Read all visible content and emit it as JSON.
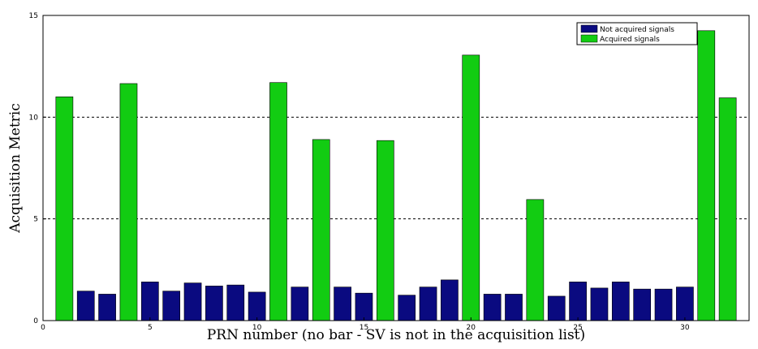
{
  "chart_data": {
    "type": "bar",
    "xlabel": "PRN number (no bar - SV is not in the acquisition list)",
    "ylabel": "Acquisition Metric",
    "xlim": [
      0,
      33
    ],
    "ylim": [
      0,
      15
    ],
    "x_ticks": [
      0,
      5,
      10,
      15,
      20,
      25,
      30
    ],
    "y_ticks": [
      0,
      5,
      10,
      15
    ],
    "grid": "horizontal dashed at y=5 and y=10",
    "legend_position": "top-right",
    "legend": [
      {
        "label": "Not acquired signals",
        "color": "#0a0a80"
      },
      {
        "label": "Acquired signals",
        "color": "#12cc12"
      }
    ],
    "series": [
      {
        "name": "Not acquired signals",
        "color": "#0a0a80",
        "x": [
          2,
          3,
          5,
          6,
          7,
          8,
          9,
          10,
          12,
          14,
          15,
          17,
          18,
          19,
          21,
          22,
          24,
          25,
          26,
          27,
          28,
          29,
          30
        ],
        "values": [
          1.45,
          1.3,
          1.9,
          1.45,
          1.85,
          1.7,
          1.75,
          1.4,
          1.65,
          1.65,
          1.35,
          1.25,
          1.65,
          2.0,
          1.3,
          1.3,
          1.2,
          1.9,
          1.6,
          1.9,
          1.55,
          1.55,
          1.65
        ]
      },
      {
        "name": "Acquired signals",
        "color": "#12cc12",
        "x": [
          1,
          4,
          11,
          13,
          16,
          20,
          23,
          31,
          32
        ],
        "values": [
          11.0,
          11.65,
          11.7,
          8.9,
          8.85,
          13.05,
          5.95,
          14.25,
          10.95
        ]
      }
    ]
  }
}
